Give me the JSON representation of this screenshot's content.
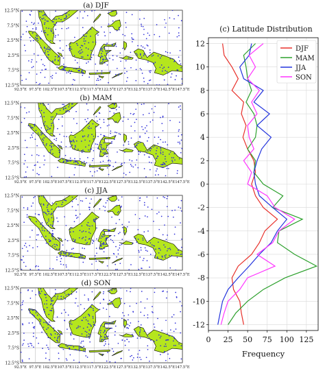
{
  "figure": {
    "map_panels": [
      {
        "title": "(a) DJF"
      },
      {
        "title": "(b) MAM"
      },
      {
        "title": "(c) JJA"
      },
      {
        "title": "(d) SON"
      }
    ],
    "lat_labels": [
      "12.5°N",
      "7.5°N",
      "2.5°N",
      "2.5°S",
      "7.5°S",
      "12.5°S"
    ],
    "lon_labels": [
      "92.5°E",
      "97.5°E",
      "102.5°E",
      "107.5°E",
      "112.5°E",
      "117.5°E",
      "122.5°E",
      "127.5°E",
      "132.5°E",
      "137.5°E",
      "142.5°E",
      "147.5°E"
    ],
    "colors": {
      "land": "#b5e61d",
      "dots": "#2b2bd8",
      "grid": "#b0b0b0",
      "coast": "#000000"
    }
  },
  "chart_data": {
    "type": "line",
    "title": "(c) Latitude Distribution",
    "xlabel": "Frequency",
    "ylabel": "",
    "xlim": [
      0,
      140
    ],
    "ylim": [
      -12.5,
      12.5
    ],
    "xticks": [
      0,
      25,
      50,
      75,
      100,
      125
    ],
    "yticks": [
      12,
      10,
      8,
      6,
      4,
      2,
      0,
      -2,
      -4,
      -6,
      -8,
      -10,
      -12
    ],
    "grid": true,
    "legend_position": "top-right",
    "y": [
      12,
      11,
      10,
      9,
      8,
      7,
      6,
      5,
      4,
      3,
      2,
      1,
      0,
      -1,
      -2,
      -3,
      -4,
      -5,
      -6,
      -7,
      -8,
      -9,
      -10,
      -11,
      -12
    ],
    "series": [
      {
        "name": "DJF",
        "color": "#e8302a",
        "values": [
          18,
          20,
          30,
          38,
          30,
          45,
          42,
          48,
          44,
          50,
          58,
          60,
          55,
          60,
          70,
          88,
          72,
          65,
          55,
          38,
          30,
          32,
          40,
          42,
          45
        ]
      },
      {
        "name": "MAM",
        "color": "#2ca02c",
        "values": [
          60,
          45,
          48,
          50,
          55,
          48,
          58,
          62,
          60,
          50,
          60,
          58,
          70,
          95,
          82,
          120,
          90,
          88,
          110,
          138,
          98,
          70,
          50,
          35,
          25
        ]
      },
      {
        "name": "JJA",
        "color": "#2233dd",
        "values": [
          55,
          52,
          40,
          45,
          70,
          58,
          78,
          62,
          80,
          68,
          62,
          58,
          60,
          65,
          82,
          100,
          88,
          80,
          65,
          52,
          38,
          25,
          18,
          15,
          12
        ]
      },
      {
        "name": "SON",
        "color": "#ff33ff",
        "values": [
          70,
          52,
          60,
          50,
          65,
          55,
          62,
          50,
          52,
          58,
          45,
          55,
          50,
          75,
          85,
          110,
          90,
          82,
          62,
          85,
          50,
          40,
          25,
          20,
          16
        ]
      }
    ]
  }
}
